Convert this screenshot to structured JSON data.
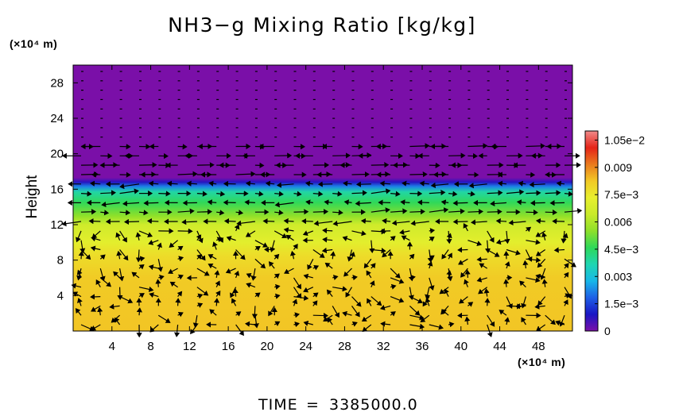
{
  "chart_data": {
    "type": "heatmap",
    "title": "NH3−g Mixing Ratio [kg/kg]",
    "xlabel": "",
    "ylabel": "Height",
    "x_unit": "(×10⁴ m)",
    "y_unit": "(×10⁴ m)",
    "xlim": [
      0,
      51.5
    ],
    "ylim": [
      0,
      30
    ],
    "x_ticks": [
      4,
      8,
      12,
      16,
      20,
      24,
      28,
      32,
      36,
      40,
      44,
      48
    ],
    "x_tick_labels": [
      "4",
      "8",
      "12",
      "16",
      "20",
      "24",
      "28",
      "32",
      "36",
      "40",
      "44",
      "48"
    ],
    "y_ticks": [
      4,
      8,
      12,
      16,
      20,
      24,
      28
    ],
    "y_tick_labels": [
      "4",
      "8",
      "12",
      "16",
      "20",
      "24",
      "28"
    ],
    "colorbar": {
      "min": 0,
      "max": 0.011,
      "ticks": [
        0,
        0.0015,
        0.003,
        0.0045,
        0.006,
        0.0075,
        0.009,
        0.0105
      ],
      "tick_labels": [
        "0",
        "1.5e−3",
        "0.003",
        "4.5e−3",
        "0.006",
        "7.5e−3",
        "0.009",
        "1.05e−2"
      ],
      "colors": [
        "#7a0fa8",
        "#1a16c4",
        "#1f5fe6",
        "#17b7e8",
        "#1fd6b2",
        "#2ed85a",
        "#8ee02a",
        "#c9ea2a",
        "#e8ef2e",
        "#f2c925",
        "#ea7a1e",
        "#e52418",
        "#f08a8a"
      ]
    },
    "profile": [
      {
        "height": 0,
        "value": 0.0083
      },
      {
        "height": 6,
        "value": 0.0082
      },
      {
        "height": 8.5,
        "value": 0.0078
      },
      {
        "height": 10,
        "value": 0.0072
      },
      {
        "height": 12,
        "value": 0.0066
      },
      {
        "height": 13,
        "value": 0.0055
      },
      {
        "height": 14.5,
        "value": 0.0046
      },
      {
        "height": 15.7,
        "value": 0.0038
      },
      {
        "height": 16.3,
        "value": 0.0022
      },
      {
        "height": 16.8,
        "value": 0.0008
      },
      {
        "height": 17.3,
        "value": 0.0
      },
      {
        "height": 30,
        "value": 0.0
      }
    ],
    "wind_vectors": "present",
    "time_label": "TIME",
    "time_value": "3385000.0"
  }
}
